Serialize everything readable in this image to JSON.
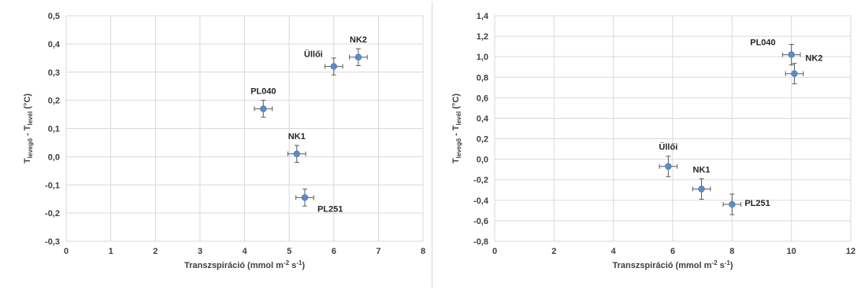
{
  "chart_data": [
    {
      "type": "scatter",
      "xlabel": "Transzspiráció  (mmol m",
      "xlabel_sup1": "-2",
      "xlabel_mid": " s",
      "xlabel_sup2": "-1",
      "xlabel_end": ")",
      "ylabel": "T",
      "ylabel_sub1": "levegő",
      "ylabel_mid": " - T",
      "ylabel_sub2": "levél",
      "ylabel_end": " (°C)",
      "xlim": [
        0,
        8
      ],
      "ylim": [
        -0.3,
        0.5
      ],
      "x_ticks": [
        "0",
        "1",
        "2",
        "3",
        "4",
        "5",
        "6",
        "7",
        "8"
      ],
      "x_tick_values": [
        0,
        1,
        2,
        3,
        4,
        5,
        6,
        7,
        8
      ],
      "y_ticks": [
        "-0,3",
        "-0,2",
        "-0,1",
        "0,0",
        "0,1",
        "0,2",
        "0,3",
        "0,4",
        "0,5"
      ],
      "y_tick_values": [
        -0.3,
        -0.2,
        -0.1,
        0,
        0.1,
        0.2,
        0.3,
        0.4,
        0.5
      ],
      "grid": true,
      "points": [
        {
          "label": "NK2",
          "x": 6.55,
          "y": 0.353,
          "xerr": 0.2,
          "yerr": 0.03,
          "label_pos": "above"
        },
        {
          "label": "Üllői",
          "x": 6.0,
          "y": 0.32,
          "xerr": 0.2,
          "yerr": 0.03,
          "label_pos": "above-left"
        },
        {
          "label": "PL040",
          "x": 4.42,
          "y": 0.17,
          "xerr": 0.2,
          "yerr": 0.03,
          "label_pos": "above"
        },
        {
          "label": "NK1",
          "x": 5.17,
          "y": 0.01,
          "xerr": 0.2,
          "yerr": 0.03,
          "label_pos": "above"
        },
        {
          "label": "PL251",
          "x": 5.35,
          "y": -0.145,
          "xerr": 0.2,
          "yerr": 0.03,
          "label_pos": "below-right"
        }
      ],
      "marker_color": "#5b8dc9"
    },
    {
      "type": "scatter",
      "xlabel": "Transzspiráció  (mmol m",
      "xlabel_sup1": "-2",
      "xlabel_mid": " s",
      "xlabel_sup2": "-1",
      "xlabel_end": ")",
      "ylabel": "T",
      "ylabel_sub1": "levegő",
      "ylabel_mid": " - T",
      "ylabel_sub2": "levél",
      "ylabel_end": " (°C)",
      "xlim": [
        0,
        12
      ],
      "ylim": [
        -0.8,
        1.4
      ],
      "x_ticks": [
        "0",
        "2",
        "4",
        "6",
        "8",
        "10",
        "12"
      ],
      "x_tick_values": [
        0,
        2,
        4,
        6,
        8,
        10,
        12
      ],
      "y_ticks": [
        "-0,8",
        "-0,6",
        "-0,4",
        "-0,2",
        "0,0",
        "0,2",
        "0,4",
        "0,6",
        "0,8",
        "1,0",
        "1,2",
        "1,4"
      ],
      "y_tick_values": [
        -0.8,
        -0.6,
        -0.4,
        -0.2,
        0,
        0.2,
        0.4,
        0.6,
        0.8,
        1.0,
        1.2,
        1.4
      ],
      "grid": true,
      "points": [
        {
          "label": "PL040",
          "x": 10.0,
          "y": 1.02,
          "xerr": 0.3,
          "yerr": 0.1,
          "label_pos": "left"
        },
        {
          "label": "NK2",
          "x": 10.1,
          "y": 0.835,
          "xerr": 0.3,
          "yerr": 0.1,
          "label_pos": "above-right"
        },
        {
          "label": "Üllői",
          "x": 5.85,
          "y": -0.07,
          "xerr": 0.3,
          "yerr": 0.1,
          "label_pos": "above"
        },
        {
          "label": "NK1",
          "x": 6.97,
          "y": -0.29,
          "xerr": 0.3,
          "yerr": 0.1,
          "label_pos": "above"
        },
        {
          "label": "PL251",
          "x": 8.0,
          "y": -0.44,
          "xerr": 0.3,
          "yerr": 0.1,
          "label_pos": "right"
        }
      ],
      "marker_color": "#5b8dc9"
    }
  ]
}
